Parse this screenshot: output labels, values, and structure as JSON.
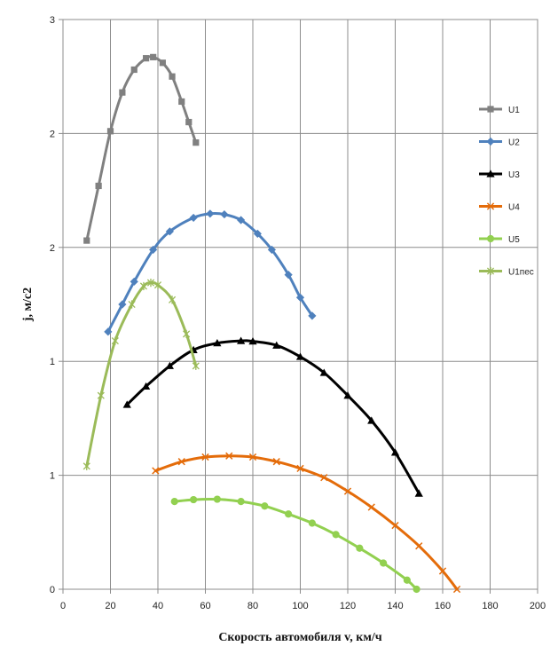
{
  "chart_data": {
    "type": "line",
    "title": "",
    "xlabel": "Скорость автомобиля v, км/ч",
    "ylabel": "j, м/с2",
    "xlim": [
      0,
      200
    ],
    "ylim": [
      0,
      2.5
    ],
    "x_ticks": [
      "0",
      "20",
      "40",
      "60",
      "80",
      "100",
      "120",
      "140",
      "160",
      "180",
      "200"
    ],
    "y_ticks": [
      "0",
      "1",
      "1",
      "2",
      "2",
      "3"
    ],
    "grid": true,
    "legend_position": "right",
    "series": [
      {
        "name": "U1",
        "color": "#808080",
        "marker": "square",
        "x": [
          10,
          15,
          20,
          25,
          30,
          35,
          38,
          42,
          46,
          50,
          53,
          56
        ],
        "y": [
          1.53,
          1.77,
          2.01,
          2.18,
          2.28,
          2.33,
          2.335,
          2.31,
          2.25,
          2.14,
          2.05,
          1.96
        ]
      },
      {
        "name": "U2",
        "color": "#4f81bd",
        "marker": "diamond",
        "x": [
          19,
          25,
          30,
          38,
          45,
          55,
          62,
          68,
          75,
          82,
          88,
          95,
          100,
          105
        ],
        "y": [
          1.13,
          1.25,
          1.35,
          1.49,
          1.57,
          1.63,
          1.648,
          1.645,
          1.62,
          1.56,
          1.49,
          1.38,
          1.28,
          1.2
        ]
      },
      {
        "name": "U3",
        "color": "#000000",
        "marker": "triangle",
        "x": [
          27,
          35,
          45,
          55,
          65,
          75,
          80,
          90,
          100,
          110,
          120,
          130,
          140,
          150
        ],
        "y": [
          0.81,
          0.89,
          0.98,
          1.05,
          1.08,
          1.09,
          1.088,
          1.07,
          1.02,
          0.95,
          0.85,
          0.74,
          0.6,
          0.42
        ]
      },
      {
        "name": "U4",
        "color": "#e46c0a",
        "marker": "x",
        "x": [
          39,
          50,
          60,
          70,
          80,
          90,
          100,
          110,
          120,
          130,
          140,
          150,
          160,
          166
        ],
        "y": [
          0.52,
          0.56,
          0.58,
          0.585,
          0.58,
          0.56,
          0.53,
          0.49,
          0.43,
          0.36,
          0.28,
          0.19,
          0.08,
          0.0
        ]
      },
      {
        "name": "U5",
        "color": "#92d050",
        "marker": "circle",
        "x": [
          47,
          55,
          65,
          75,
          85,
          95,
          105,
          115,
          125,
          135,
          145,
          149
        ],
        "y": [
          0.385,
          0.393,
          0.395,
          0.385,
          0.365,
          0.33,
          0.29,
          0.24,
          0.18,
          0.115,
          0.04,
          0.0
        ]
      },
      {
        "name": "U1пес",
        "color": "#9bbb59",
        "marker": "star",
        "x": [
          10,
          16,
          22,
          29,
          34,
          37,
          40,
          46,
          52,
          56
        ],
        "y": [
          0.54,
          0.85,
          1.09,
          1.25,
          1.33,
          1.345,
          1.335,
          1.27,
          1.12,
          0.98
        ]
      }
    ]
  }
}
